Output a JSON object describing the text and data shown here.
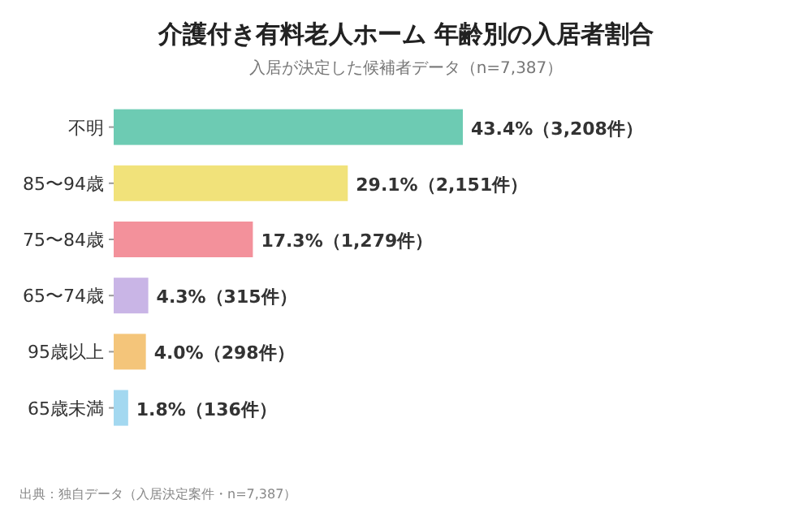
{
  "chart_data": {
    "type": "bar",
    "orientation": "horizontal",
    "title": "介護付き有料老人ホーム 年齢別の入居者割合",
    "subtitle": "入居が決定した候補者データ（n=7,387）",
    "categories": [
      "不明",
      "85〜94歳",
      "75〜84歳",
      "65〜74歳",
      "95歳以上",
      "65歳未満"
    ],
    "values": [
      43.4,
      29.1,
      17.3,
      4.3,
      4.0,
      1.8
    ],
    "colors": [
      "#6dcbb3",
      "#f1e27a",
      "#f3919b",
      "#c9b5e6",
      "#f4c57a",
      "#a3d8f0"
    ],
    "value_labels": [
      "43.4%（3,208件）",
      "29.1%（2,151件）",
      "17.3%（1,279件）",
      "4.3%（315件）",
      "4.0%（298件）",
      "1.8%（136件）"
    ],
    "annotations": [
      "出典：独自データ（入居決定案件・n=7,387）"
    ]
  }
}
